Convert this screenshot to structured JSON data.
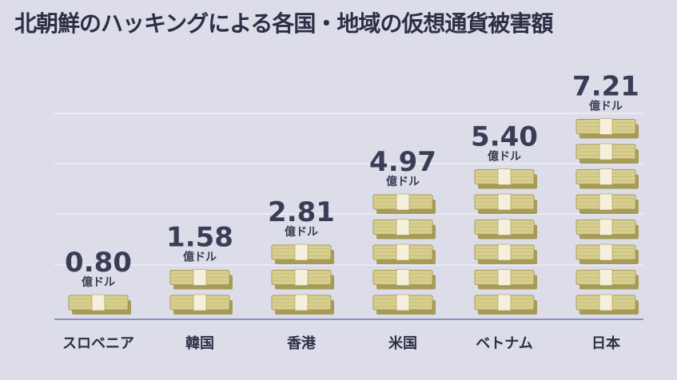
{
  "title": "北朝鮮のハッキングによる各国・地域の仮想通貨被害額",
  "colors": {
    "background": "#dcdde8",
    "gridline": "#eeeef5",
    "baseline": "#8a8fc8",
    "text": "#3a3d55",
    "cash": "#d8cf8f",
    "cash_edge": "#a79b58",
    "band": "#f4f0dc"
  },
  "chart_data": {
    "type": "bar",
    "title": "北朝鮮のハッキングによる各国・地域の仮想通貨被害額",
    "categories": [
      "スロベニア",
      "韓国",
      "香港",
      "米国",
      "ベトナム",
      "日本"
    ],
    "values": [
      0.8,
      1.58,
      2.81,
      4.97,
      5.4,
      7.21
    ],
    "value_labels": [
      "0.80",
      "1.58",
      "2.81",
      "4.97",
      "5.40",
      "7.21"
    ],
    "unit_label": "億ドル",
    "stacks": [
      1,
      2,
      3,
      5,
      6,
      8
    ],
    "grid": true,
    "legend": "none"
  }
}
